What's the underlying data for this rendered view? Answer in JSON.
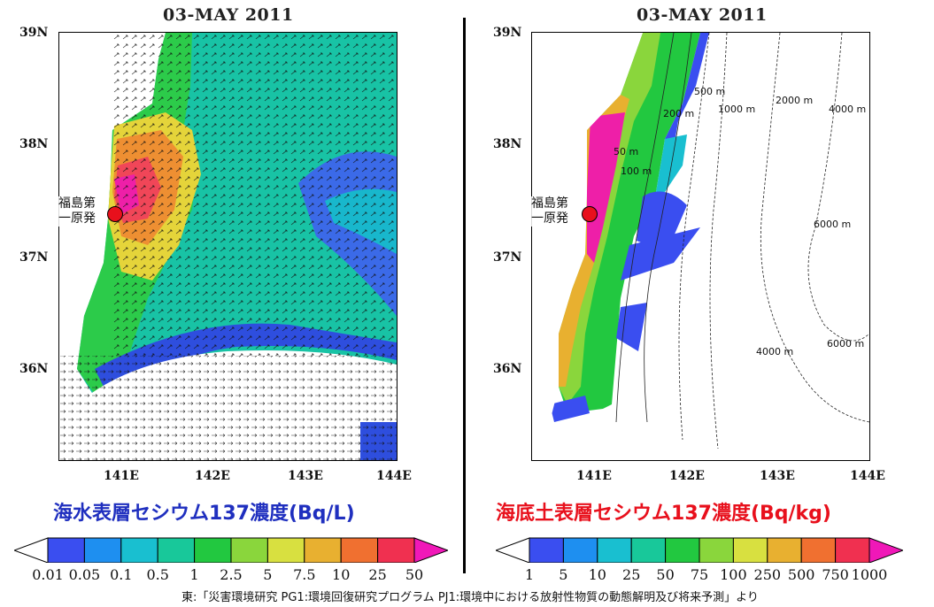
{
  "left_panel": {
    "title": "03-MAY 2011",
    "y_ticks": [
      "39N",
      "38N",
      "37N",
      "36N"
    ],
    "x_ticks": [
      "141E",
      "142E",
      "143E",
      "144E"
    ],
    "plant_label_line1": "福島第",
    "plant_label_line2": "一原発",
    "caption_main": "海水表層セシウム",
    "caption_num": "137濃度(Bq/L)",
    "caption_color": "#1f2fbf",
    "colorbar_labels": [
      "0.01",
      "0.05",
      "0.1",
      "0.5",
      "1",
      "2.5",
      "5",
      "7.5",
      "10",
      "25",
      "50"
    ],
    "colorbar_colors": [
      "#3a4ef0",
      "#1e8ff0",
      "#19bfd0",
      "#18c89a",
      "#22c840",
      "#8ad63c",
      "#d8e040",
      "#e8b030",
      "#f07030",
      "#f03050"
    ],
    "colorbar_max_color": "#f018b8"
  },
  "right_panel": {
    "title": "03-MAY 2011",
    "y_ticks": [
      "39N",
      "38N",
      "37N",
      "36N"
    ],
    "x_ticks": [
      "141E",
      "142E",
      "143E",
      "144E"
    ],
    "plant_label_line1": "福島第",
    "plant_label_line2": "一原発",
    "caption_main": "海底土表層セシウム",
    "caption_num": "137濃度(Bq/kg)",
    "caption_color": "#e8101c",
    "colorbar_labels": [
      "1",
      "5",
      "10",
      "25",
      "50",
      "75",
      "100",
      "250",
      "500",
      "750",
      "1000"
    ],
    "colorbar_colors": [
      "#3a4ef0",
      "#1e8ff0",
      "#19bfd0",
      "#18c89a",
      "#22c840",
      "#8ad63c",
      "#d8e040",
      "#e8b030",
      "#f07030",
      "#f03050"
    ],
    "colorbar_max_color": "#f018b8",
    "contour_labels": [
      "50 m",
      "100 m",
      "200 m",
      "500 m",
      "1000 m",
      "2000 m",
      "4000 m",
      "6000 m",
      "6000 m",
      "4000 m"
    ]
  },
  "credit": "東:「災害環境研究 PG1:環境回復研究プログラム PJ1:環境中における放射性物質の動態解明及び将来予測」より",
  "plant_marker_color": "#e8101c"
}
